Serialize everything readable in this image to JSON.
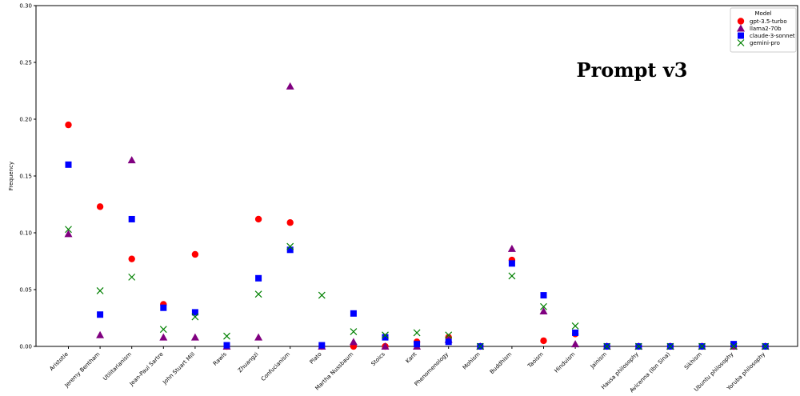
{
  "chart_data": {
    "type": "scatter",
    "title": "",
    "xlabel": "",
    "ylabel": "Frequency",
    "ylim": [
      0,
      0.3
    ],
    "yticks": [
      "0.00",
      "0.05",
      "0.10",
      "0.15",
      "0.20",
      "0.25",
      "0.30"
    ],
    "ytick_values": [
      0,
      0.05,
      0.1,
      0.15,
      0.2,
      0.25,
      0.3
    ],
    "annotation": "Prompt v3",
    "legend_title": "Model",
    "legend_position": "top-right",
    "grid": false,
    "categories": [
      "Aristotle",
      "Jeremy Bentham",
      "Utilitarianism",
      "Jean-Paul Sartre",
      "John Stuart Mill",
      "Rawls",
      "Zhuangzi",
      "Confucianism",
      "Plato",
      "Martha Nussbaum",
      "Stoics",
      "Kant",
      "Phenomenology",
      "Mohism",
      "Buddhism",
      "Taoism",
      "Hinduism",
      "Jainism",
      "Hausa philosophy",
      "Avicenna (Ibn Sina)",
      "Sikhism",
      "Ubuntu philosophy",
      "Yoruba philosophy"
    ],
    "series": [
      {
        "name": "gpt-3.5-turbo",
        "color": "#ff0000",
        "marker": "circle",
        "values": [
          0.195,
          0.123,
          0.077,
          0.037,
          0.081,
          0,
          0.112,
          0.109,
          0,
          0,
          0,
          0.004,
          0.008,
          0,
          0.076,
          0.005,
          0.011,
          0,
          0,
          0,
          0,
          0,
          0
        ]
      },
      {
        "name": "llama2-70b",
        "color": "#800080",
        "marker": "triangle",
        "values": [
          0.099,
          0.01,
          0.164,
          0.008,
          0.008,
          0,
          0.008,
          0.229,
          0,
          0.004,
          0,
          0,
          0.006,
          0,
          0.086,
          0.031,
          0.002,
          0,
          0,
          0,
          0,
          0,
          0
        ]
      },
      {
        "name": "claude-3-sonnet",
        "color": "#0000ff",
        "marker": "square",
        "values": [
          0.16,
          0.028,
          0.112,
          0.034,
          0.03,
          0.001,
          0.06,
          0.085,
          0.001,
          0.029,
          0.008,
          0.002,
          0.004,
          0,
          0.073,
          0.045,
          0.012,
          0,
          0,
          0,
          0,
          0.002,
          0
        ]
      },
      {
        "name": "gemini-pro",
        "color": "#008000",
        "marker": "x",
        "values": [
          0.103,
          0.049,
          0.061,
          0.015,
          0.026,
          0.009,
          0.046,
          0.088,
          0.045,
          0.013,
          0.01,
          0.012,
          0.01,
          0,
          0.062,
          0.035,
          0.018,
          0,
          0,
          0,
          0,
          0,
          0
        ]
      }
    ]
  }
}
